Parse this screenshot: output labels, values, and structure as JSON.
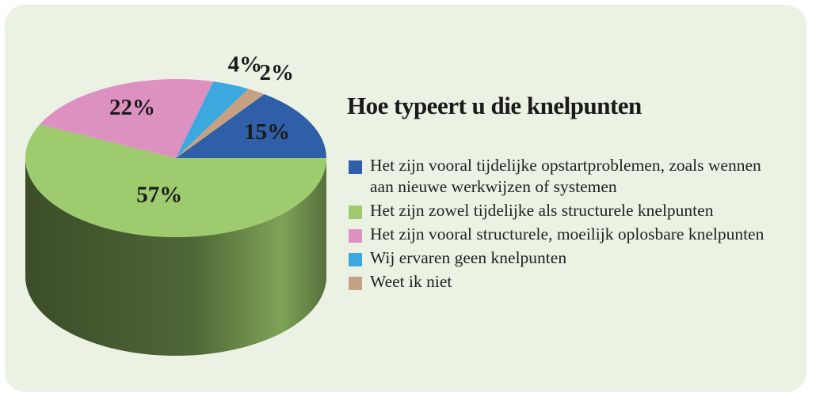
{
  "chart_data": {
    "type": "pie3d",
    "title": "Hoe typeert u die knelpunten",
    "categories": [
      "Het zijn vooral tijdelijke opstartproblemen, zoals wennen aan nieuwe werkwijzen of systemen",
      "Het zijn zowel tijdelijke als structurele knelpunten",
      "Het zijn vooral structurele, moeilijk oplosbare knelpunten",
      "Wij ervaren geen knelpunten",
      "Weet ik niet"
    ],
    "values": [
      15,
      57,
      22,
      4,
      2
    ],
    "value_labels": [
      "15%",
      "57%",
      "22%",
      "4%",
      "2%"
    ],
    "colors": [
      "#2f5fa8",
      "#9dcb6d",
      "#dc91c1",
      "#3ba8e0",
      "#c7a184"
    ]
  }
}
